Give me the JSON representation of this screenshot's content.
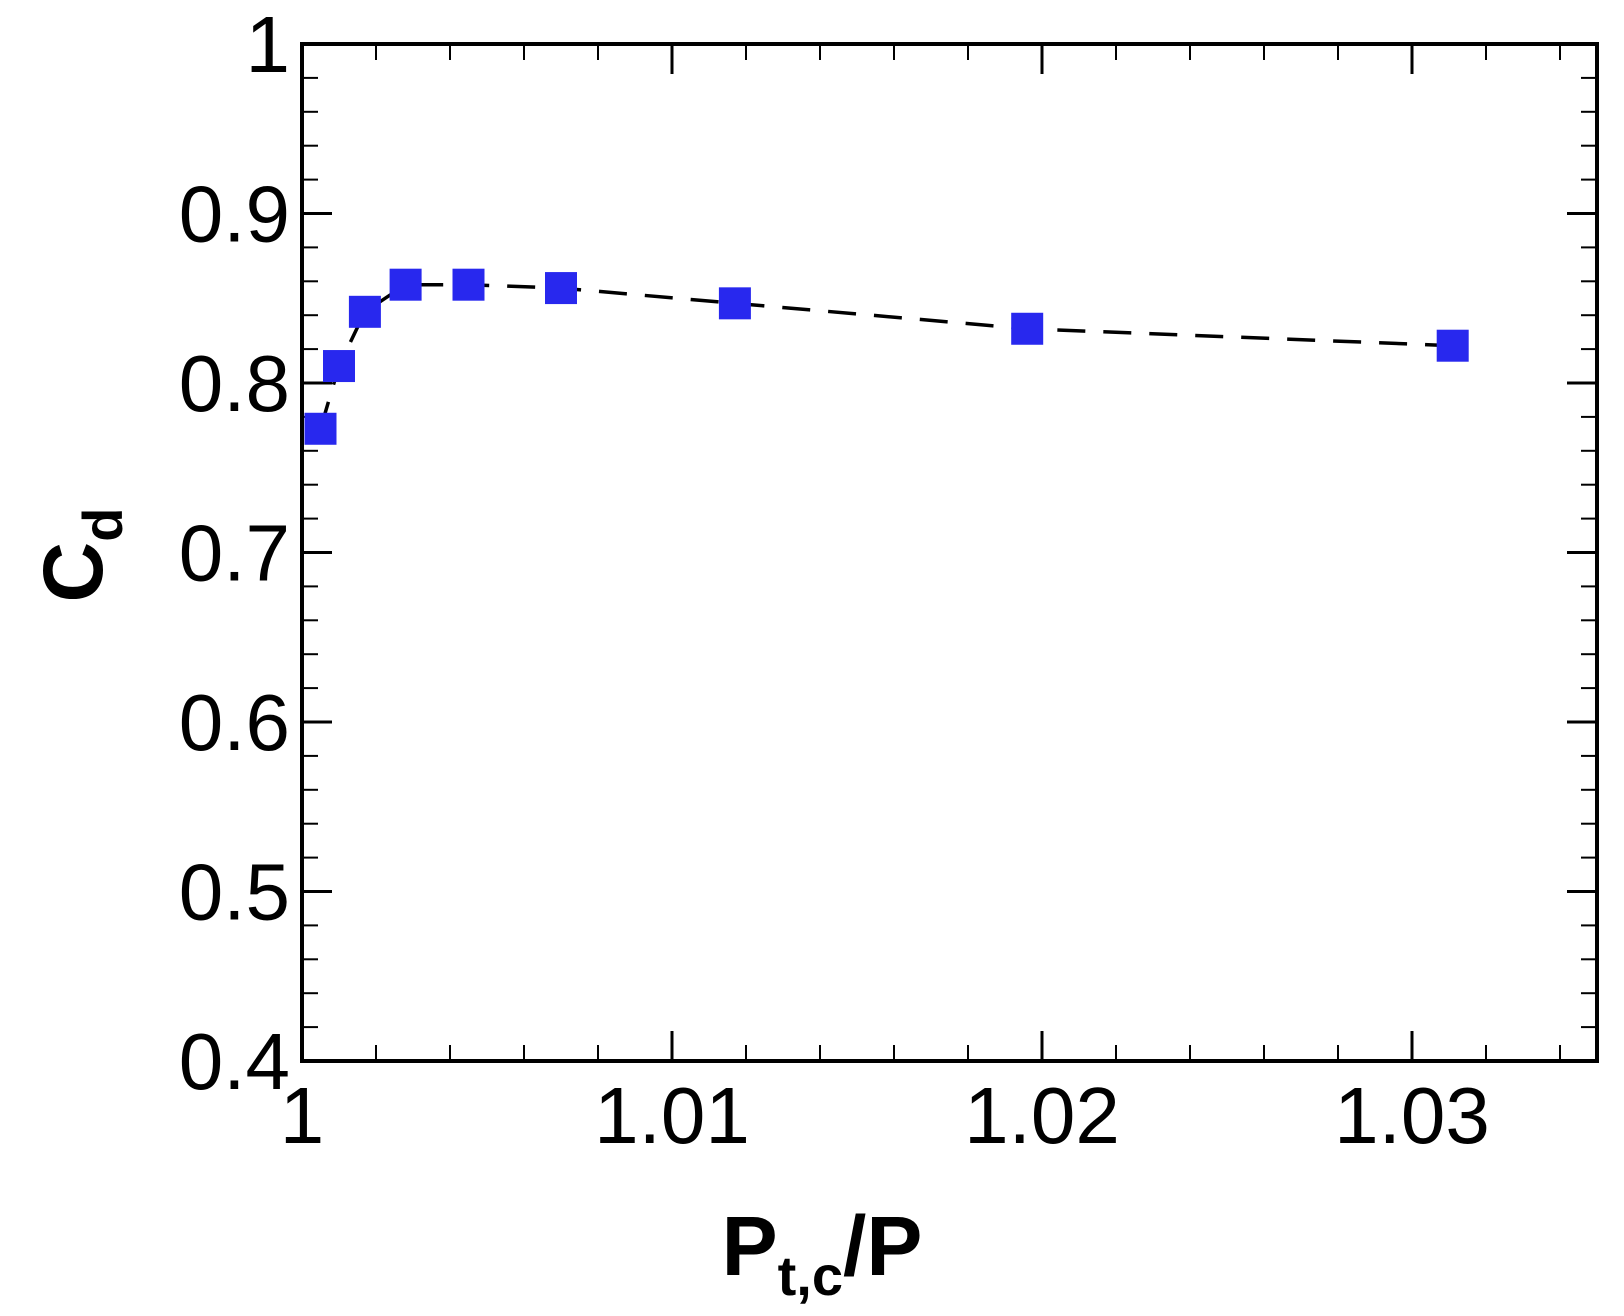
{
  "chart_data": {
    "type": "line",
    "xlabel": {
      "main": "P",
      "sub": "t,c",
      "tail": "/P"
    },
    "ylabel": {
      "main": "C",
      "sub": "d"
    },
    "xlim": [
      1.0,
      1.035
    ],
    "ylim": [
      0.4,
      1.0
    ],
    "x_ticks": [
      1.0,
      1.01,
      1.02,
      1.03
    ],
    "x_tick_labels": [
      "1",
      "1.01",
      "1.02",
      "1.03"
    ],
    "y_ticks": [
      0.4,
      0.5,
      0.6,
      0.7,
      0.8,
      0.9,
      1.0
    ],
    "y_tick_labels": [
      "0.4",
      "0.5",
      "0.6",
      "0.7",
      "0.8",
      "0.9",
      "1"
    ],
    "x_minor_step": 0.002,
    "y_minor_step": 0.02,
    "grid": false,
    "series": [
      {
        "x": [
          1.0005,
          1.001,
          1.0017,
          1.0028,
          1.0045,
          1.007,
          1.0117,
          1.0196,
          1.0311
        ],
        "y": [
          0.773,
          0.81,
          0.842,
          0.858,
          0.858,
          0.856,
          0.847,
          0.832,
          0.822
        ],
        "marker": "square",
        "marker_color": "#2828ee",
        "line_style": "dashed",
        "line_color": "#000000"
      }
    ]
  }
}
